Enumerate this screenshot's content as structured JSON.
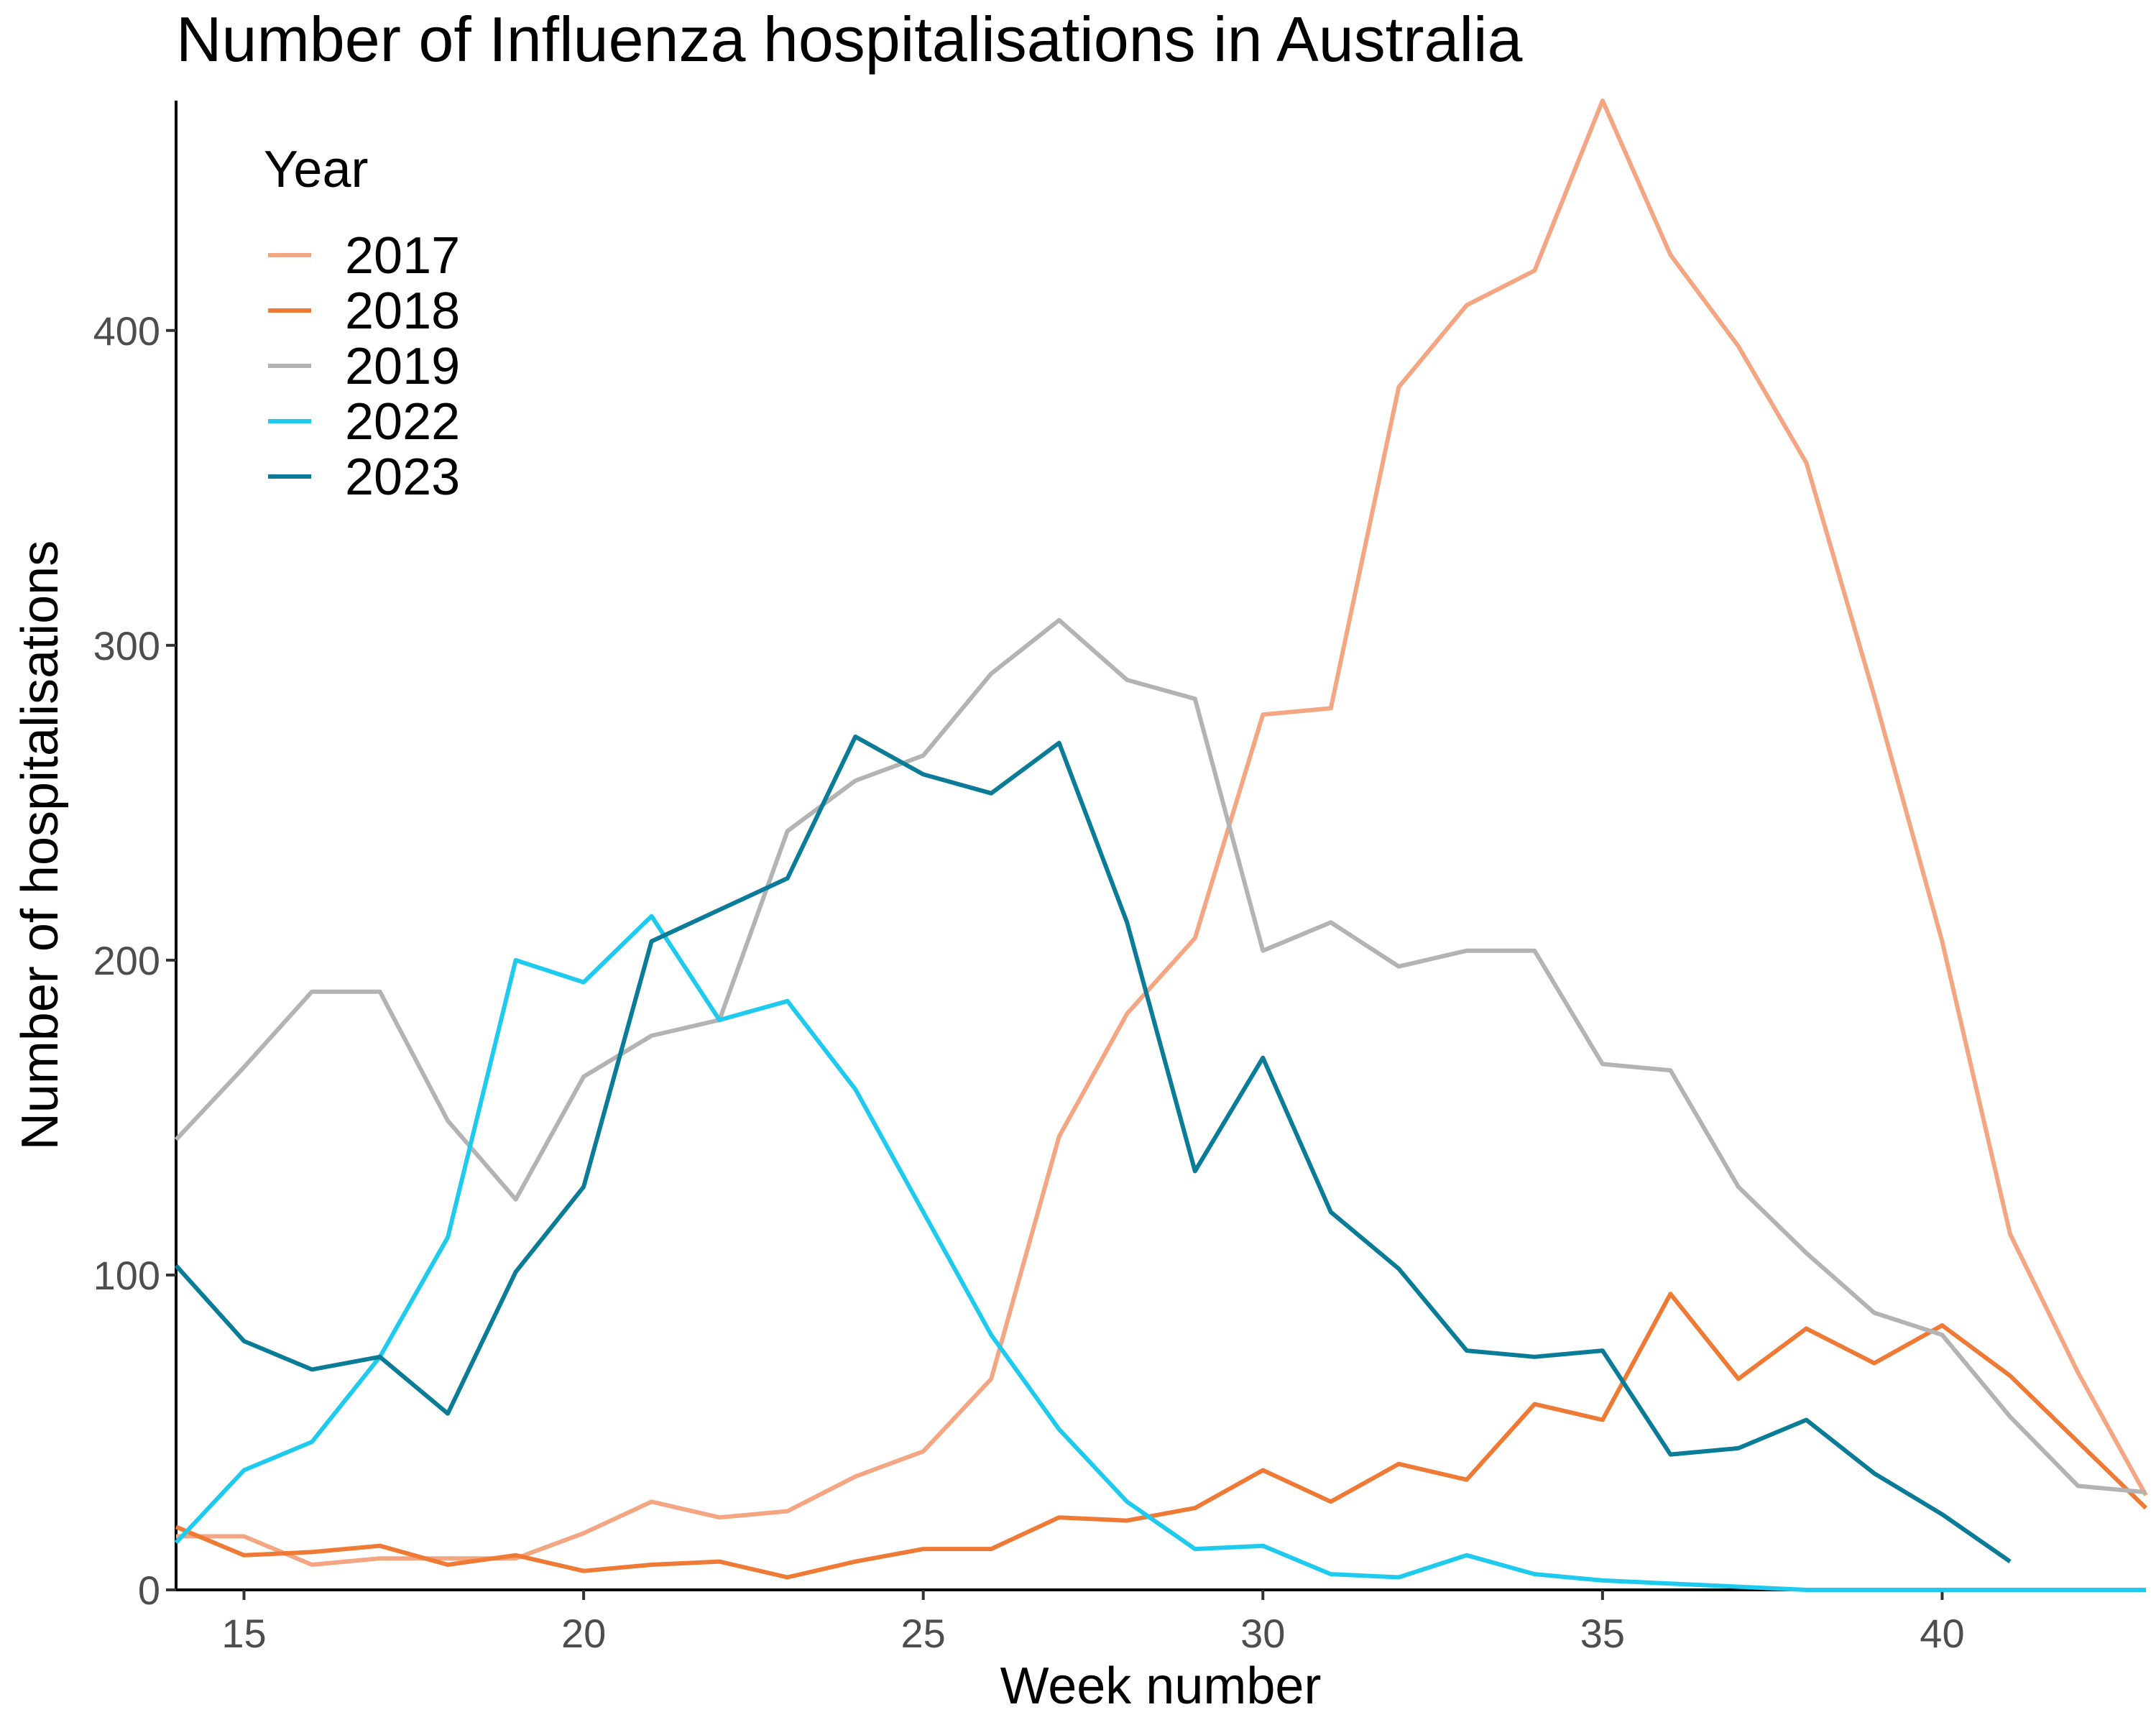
{
  "chart_data": {
    "type": "line",
    "title": "Number of Influenza hospitalisations in Australia",
    "xlabel": "Week number",
    "ylabel": "Number of hospitalisations",
    "xlim": [
      14,
      43
    ],
    "ylim": [
      0,
      473
    ],
    "xticks": [
      15,
      20,
      25,
      30,
      35,
      40
    ],
    "yticks": [
      0,
      100,
      200,
      300,
      400
    ],
    "grid": false,
    "legend": {
      "title": "Year",
      "position": "top-left"
    },
    "x": [
      14,
      15,
      16,
      17,
      18,
      19,
      20,
      21,
      22,
      23,
      24,
      25,
      26,
      27,
      28,
      29,
      30,
      31,
      32,
      33,
      34,
      35,
      36,
      37,
      38,
      39,
      40,
      41,
      42,
      43
    ],
    "series": [
      {
        "name": "2017",
        "color": "#F4A582",
        "values": [
          17,
          17,
          8,
          10,
          10,
          10,
          18,
          28,
          23,
          25,
          36,
          44,
          67,
          144,
          183,
          207,
          278,
          280,
          382,
          408,
          419,
          473,
          424,
          395,
          358,
          284,
          206,
          113,
          69,
          30
        ]
      },
      {
        "name": "2018",
        "color": "#EF7A35",
        "values": [
          20,
          11,
          12,
          14,
          8,
          11,
          6,
          8,
          9,
          4,
          9,
          13,
          13,
          23,
          22,
          26,
          38,
          28,
          40,
          35,
          59,
          54,
          94,
          67,
          83,
          72,
          84,
          68,
          47,
          26
        ]
      },
      {
        "name": "2019",
        "color": "#B3B3B3",
        "values": [
          143,
          166,
          190,
          190,
          149,
          124,
          163,
          176,
          181,
          241,
          257,
          265,
          291,
          308,
          289,
          283,
          203,
          212,
          198,
          203,
          203,
          167,
          165,
          128,
          107,
          88,
          81,
          55,
          33,
          31
        ]
      },
      {
        "name": "2022",
        "color": "#1ECBEE",
        "values": [
          15,
          38,
          47,
          74,
          112,
          200,
          193,
          214,
          181,
          187,
          159,
          120,
          81,
          51,
          28,
          13,
          14,
          5,
          4,
          11,
          5,
          3,
          2,
          1,
          0,
          0,
          0,
          0,
          0,
          0
        ]
      },
      {
        "name": "2023",
        "color": "#0A7C98",
        "values": [
          103,
          79,
          70,
          74,
          56,
          101,
          128,
          206,
          216,
          226,
          271,
          259,
          253,
          269,
          212,
          133,
          169,
          120,
          102,
          76,
          74,
          76,
          43,
          45,
          54,
          37,
          24,
          9,
          null,
          null
        ]
      }
    ]
  }
}
